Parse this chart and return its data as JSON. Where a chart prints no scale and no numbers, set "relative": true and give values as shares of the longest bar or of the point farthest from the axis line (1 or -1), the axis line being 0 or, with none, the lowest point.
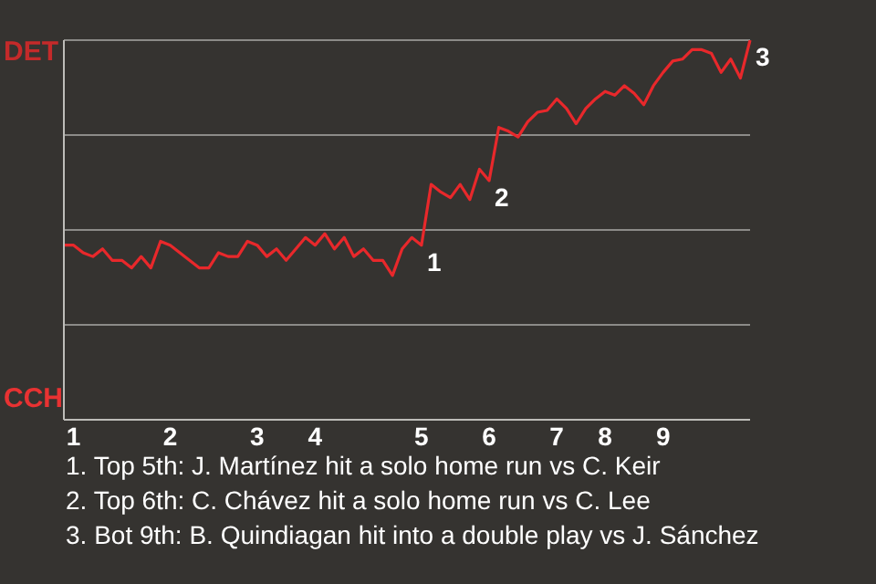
{
  "chart_data": {
    "type": "line",
    "relative": true,
    "categories": [
      null,
      "1",
      null,
      null,
      null,
      null,
      null,
      null,
      null,
      null,
      null,
      "2",
      null,
      null,
      null,
      null,
      null,
      null,
      null,
      null,
      "3",
      null,
      null,
      null,
      null,
      null,
      "4",
      null,
      null,
      null,
      null,
      null,
      null,
      null,
      null,
      null,
      null,
      "5",
      null,
      null,
      null,
      null,
      null,
      null,
      "6",
      null,
      null,
      null,
      null,
      null,
      null,
      "7",
      null,
      null,
      null,
      null,
      "8",
      null,
      null,
      null,
      null,
      null,
      "9",
      null,
      null,
      null,
      null,
      null,
      null,
      null,
      null,
      null
    ],
    "series": [
      {
        "color": "#e8282b",
        "values": [
          0.46,
          0.46,
          0.44,
          0.43,
          0.45,
          0.42,
          0.42,
          0.4,
          0.43,
          0.4,
          0.47,
          0.46,
          0.44,
          0.42,
          0.4,
          0.4,
          0.44,
          0.43,
          0.43,
          0.47,
          0.46,
          0.43,
          0.45,
          0.42,
          0.45,
          0.48,
          0.46,
          0.49,
          0.45,
          0.48,
          0.43,
          0.45,
          0.42,
          0.42,
          0.38,
          0.45,
          0.48,
          0.46,
          0.62,
          0.6,
          0.585,
          0.62,
          0.58,
          0.66,
          0.63,
          0.77,
          0.76,
          0.745,
          0.785,
          0.81,
          0.815,
          0.845,
          0.82,
          0.78,
          0.82,
          0.845,
          0.865,
          0.855,
          0.88,
          0.86,
          0.83,
          0.88,
          0.915,
          0.945,
          0.95,
          0.975,
          0.975,
          0.965,
          0.915,
          0.95,
          0.9,
          1.0
        ]
      }
    ],
    "grid": "y",
    "marker": "none",
    "line_style": "solid",
    "annotations": [
      "DET",
      "CCH",
      "3",
      {
        "text": "1",
        "x": "5",
        "y": 0.46
      },
      {
        "text": "2",
        "x": "6",
        "y": 0.63
      },
      "1. Top 5th: J. Martínez hit a solo home run vs C. Keir",
      "2. Top 6th: C. Chávez hit a solo home run vs C. Lee",
      "3. Bot 9th: B. Quindiagan hit into a double play vs J. Sánchez"
    ]
  }
}
